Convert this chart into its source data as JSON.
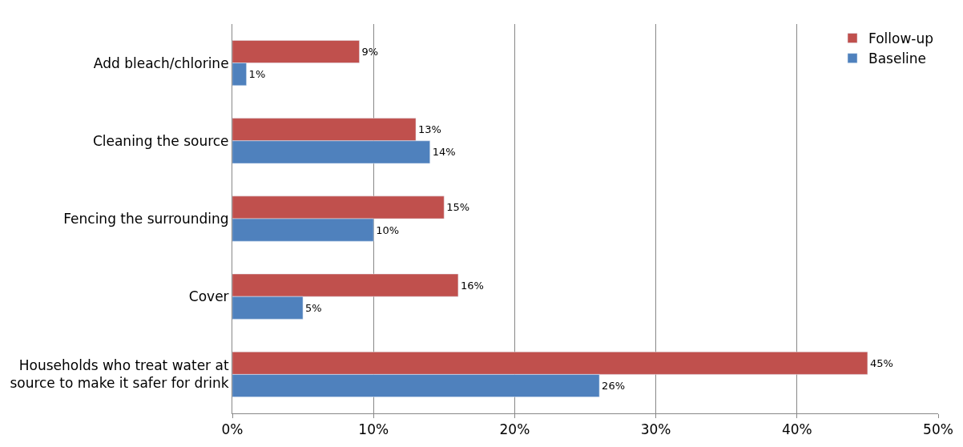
{
  "chart_data": {
    "type": "bar",
    "orientation": "horizontal",
    "categories": [
      "Add bleach/chlorine",
      "Cleaning the source",
      "Fencing the surrounding",
      "Cover",
      "Households who treat water at\nsource to make it safer for drink"
    ],
    "series": [
      {
        "name": "Follow-up",
        "color": "#c0504d",
        "values": [
          9,
          13,
          15,
          16,
          45
        ],
        "value_labels": [
          "9%",
          "13%",
          "15%",
          "16%",
          "45%"
        ]
      },
      {
        "name": "Baseline",
        "color": "#4f81bd",
        "values": [
          1,
          14,
          10,
          5,
          26
        ],
        "value_labels": [
          "1%",
          "14%",
          "10%",
          "5%",
          "26%"
        ]
      }
    ],
    "xlim": [
      0,
      50
    ],
    "xticks": [
      {
        "value": 0,
        "label": "0%"
      },
      {
        "value": 10,
        "label": "10%"
      },
      {
        "value": 20,
        "label": "20%"
      },
      {
        "value": 30,
        "label": "30%"
      },
      {
        "value": 40,
        "label": "40%"
      },
      {
        "value": 50,
        "label": "50%"
      }
    ],
    "grid": "x",
    "legend": "top right"
  }
}
